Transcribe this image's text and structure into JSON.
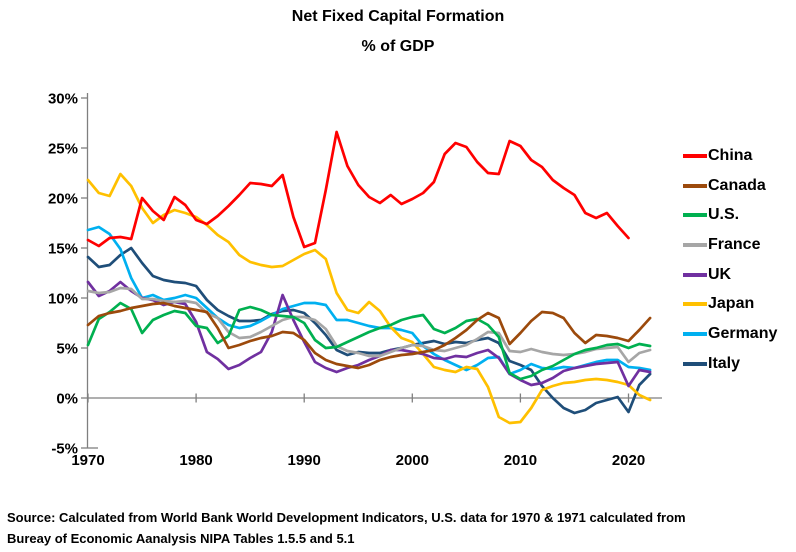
{
  "title": "Net Fixed Capital Formation",
  "subtitle": "% of GDP",
  "source": {
    "line1": "Source:  Calculated from World Bank World Development Indicators, U.S. data for 1970 & 1971 calculated from",
    "line2": "Bureay of Economic Aanalysis NIPA Tables 1.5.5 and 5.1"
  },
  "colors": {
    "axis": "#7f7f7f",
    "text": "#000000"
  },
  "chart_data": {
    "type": "line",
    "title": "Net Fixed Capital Formation",
    "subtitle": "% of GDP",
    "legend_position": "right",
    "grid": "zero-line-only",
    "x_axis": {
      "range": [
        1970,
        2022
      ],
      "ticks": [
        1970,
        1980,
        1990,
        2000,
        2010,
        2020
      ]
    },
    "y_axis": {
      "unit": "% of GDP",
      "range": [
        -5,
        30
      ],
      "ticks": [
        {
          "label": "30%",
          "value": 30
        },
        {
          "label": "25%",
          "value": 25
        },
        {
          "label": "20%",
          "value": 20
        },
        {
          "label": "15%",
          "value": 15
        },
        {
          "label": "10%",
          "value": 10
        },
        {
          "label": "5%",
          "value": 5
        },
        {
          "label": "0%",
          "value": 0
        },
        {
          "label": "-5%",
          "value": -5
        }
      ]
    },
    "series": [
      {
        "name": "China",
        "color": "#FF0000",
        "start_year": 1970,
        "values": [
          15.8,
          15.2,
          16.0,
          16.1,
          15.9,
          20.0,
          18.7,
          17.8,
          20.1,
          19.3,
          17.8,
          17.4,
          18.2,
          19.2,
          20.3,
          21.5,
          21.4,
          21.2,
          22.3,
          18.1,
          15.1,
          15.5,
          20.8,
          26.6,
          23.2,
          21.3,
          20.1,
          19.5,
          20.3,
          19.4,
          19.9,
          20.5,
          21.6,
          24.4,
          25.5,
          25.1,
          23.6,
          22.5,
          22.4,
          25.7,
          25.2,
          23.8,
          23.1,
          21.8,
          21.0,
          20.3,
          18.5,
          18.0,
          18.5,
          17.2,
          16.0
        ]
      },
      {
        "name": "Canada",
        "color": "#9C4A0C",
        "start_year": 1970,
        "values": [
          7.3,
          8.2,
          8.5,
          8.7,
          9.0,
          9.2,
          9.4,
          9.5,
          9.2,
          9.0,
          8.8,
          8.6,
          7.0,
          5.0,
          5.3,
          5.7,
          6.0,
          6.2,
          6.6,
          6.5,
          5.8,
          4.5,
          3.8,
          3.4,
          3.2,
          3.0,
          3.3,
          3.8,
          4.1,
          4.3,
          4.4,
          4.6,
          4.8,
          5.3,
          6.0,
          6.8,
          7.8,
          8.5,
          8.0,
          5.4,
          6.5,
          7.7,
          8.6,
          8.5,
          8.0,
          6.5,
          5.5,
          6.3,
          6.2,
          6.0,
          5.7,
          6.8,
          8.0
        ]
      },
      {
        "name": "U.S.",
        "color": "#00B050",
        "start_year": 1970,
        "values": [
          5.3,
          7.9,
          8.6,
          9.5,
          8.9,
          6.5,
          7.8,
          8.3,
          8.7,
          8.5,
          7.2,
          7.0,
          5.5,
          6.2,
          8.8,
          9.1,
          8.8,
          8.3,
          8.2,
          8.1,
          7.5,
          5.8,
          5.0,
          5.1,
          5.6,
          6.1,
          6.6,
          7.0,
          7.3,
          7.8,
          8.1,
          8.3,
          6.9,
          6.5,
          7.0,
          7.7,
          7.9,
          7.3,
          6.1,
          2.5,
          1.9,
          2.2,
          2.8,
          3.2,
          3.8,
          4.4,
          4.8,
          5.0,
          5.3,
          5.4,
          5.0,
          5.4,
          5.2
        ]
      },
      {
        "name": "France",
        "color": "#A6A6A6",
        "start_year": 1970,
        "values": [
          10.7,
          10.5,
          10.6,
          11.0,
          10.9,
          9.9,
          9.9,
          9.7,
          9.6,
          9.7,
          9.5,
          8.5,
          8.0,
          6.6,
          6.0,
          6.1,
          6.6,
          7.2,
          7.8,
          8.1,
          8.1,
          7.8,
          6.9,
          5.2,
          4.7,
          4.5,
          4.2,
          4.2,
          4.6,
          5.0,
          5.3,
          5.2,
          4.8,
          4.7,
          5.0,
          5.3,
          5.9,
          6.6,
          6.5,
          4.7,
          4.6,
          4.9,
          4.6,
          4.4,
          4.3,
          4.4,
          4.6,
          4.9,
          5.0,
          5.1,
          3.6,
          4.5,
          4.8
        ]
      },
      {
        "name": "UK",
        "color": "#7030A0",
        "start_year": 1970,
        "values": [
          11.6,
          10.2,
          10.7,
          11.6,
          10.7,
          10.0,
          9.8,
          9.3,
          9.6,
          9.4,
          7.6,
          4.6,
          3.9,
          2.9,
          3.3,
          4.0,
          4.6,
          6.6,
          10.3,
          7.8,
          5.6,
          3.6,
          3.0,
          2.6,
          3.0,
          3.3,
          3.8,
          4.2,
          4.8,
          4.8,
          4.6,
          4.4,
          4.0,
          3.9,
          4.2,
          4.1,
          4.5,
          4.8,
          4.0,
          2.4,
          1.8,
          1.3,
          1.5,
          2.0,
          2.7,
          3.0,
          3.2,
          3.4,
          3.5,
          3.6,
          1.2,
          2.8,
          2.6
        ]
      },
      {
        "name": "Japan",
        "color": "#FFC000",
        "start_year": 1970,
        "values": [
          21.8,
          20.5,
          20.2,
          22.4,
          21.2,
          19.0,
          17.5,
          18.3,
          18.8,
          18.5,
          18.1,
          17.3,
          16.3,
          15.6,
          14.3,
          13.6,
          13.3,
          13.1,
          13.2,
          13.8,
          14.4,
          14.8,
          13.9,
          10.5,
          8.8,
          8.5,
          9.6,
          8.7,
          7.1,
          6.0,
          5.6,
          4.4,
          3.1,
          2.8,
          2.6,
          3.1,
          2.9,
          1.1,
          -1.9,
          -2.5,
          -2.4,
          -1.0,
          0.8,
          1.2,
          1.5,
          1.6,
          1.8,
          1.9,
          1.8,
          1.6,
          1.3,
          0.3,
          -0.2
        ]
      },
      {
        "name": "Germany",
        "color": "#00B0F0",
        "start_year": 1970,
        "values": [
          16.8,
          17.1,
          16.4,
          14.9,
          12.0,
          10.0,
          10.3,
          9.8,
          10.0,
          10.3,
          10.0,
          9.0,
          8.0,
          7.3,
          7.0,
          7.2,
          7.7,
          8.3,
          8.9,
          9.2,
          9.5,
          9.5,
          9.3,
          7.8,
          7.8,
          7.5,
          7.2,
          7.0,
          7.0,
          6.8,
          6.5,
          5.2,
          4.4,
          3.8,
          3.3,
          2.8,
          3.3,
          4.0,
          4.1,
          2.4,
          2.8,
          3.4,
          3.0,
          2.9,
          3.1,
          3.0,
          3.3,
          3.6,
          3.8,
          3.8,
          3.1,
          3.0,
          2.8
        ]
      },
      {
        "name": "Italy",
        "color": "#1F4E79",
        "start_year": 1970,
        "values": [
          14.1,
          13.1,
          13.3,
          14.3,
          15.0,
          13.5,
          12.2,
          11.8,
          11.6,
          11.5,
          11.2,
          9.8,
          8.8,
          8.2,
          7.7,
          7.7,
          7.8,
          8.4,
          8.7,
          8.8,
          8.5,
          7.5,
          6.3,
          4.8,
          4.3,
          4.6,
          4.5,
          4.5,
          4.8,
          5.0,
          5.3,
          5.5,
          5.7,
          5.4,
          5.6,
          5.5,
          5.8,
          6.0,
          5.5,
          3.7,
          3.3,
          2.8,
          1.2,
          0.0,
          -1.0,
          -1.5,
          -1.2,
          -0.5,
          -0.2,
          0.1,
          -1.4,
          1.3,
          2.4
        ]
      }
    ]
  }
}
